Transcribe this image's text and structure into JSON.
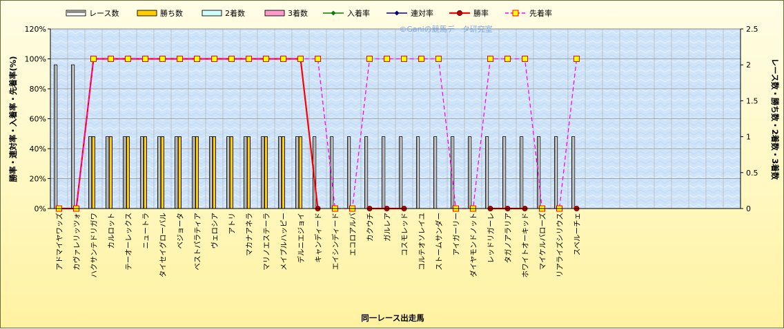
{
  "chart_data": {
    "type": "bar+line",
    "watermark": "©Ganiの競馬データ研究室",
    "xlabel": "同一レース出走馬",
    "ylabel_left": "勝率・連対率・入着率・先着率(%)",
    "ylabel_right": "レース数・勝ち数・2着数・3着数",
    "ylim_left": [
      0,
      120
    ],
    "ylim_right": [
      0,
      2.5
    ],
    "yticks_left": [
      "0%",
      "20%",
      "40%",
      "60%",
      "80%",
      "100%",
      "120%"
    ],
    "yticks_right": [
      "0",
      "0.5",
      "1",
      "1.5",
      "2",
      "2.5"
    ],
    "grid": true,
    "legend_position": "top",
    "total_slots": 40,
    "categories": [
      "アドマイヤワッズ",
      "カヴァレリッツォ",
      "ハクサンテドリガワ",
      "カルロット",
      "テーオーレックス",
      "ニュートラ",
      "タイセイグローバル",
      "ベジョータ",
      "ベストパラティア",
      "ヴェロシア",
      "アトリ",
      "マカナアネラ",
      "マリノエステーラ",
      "メイプルハッピー",
      "デルニエジョイ",
      "キャンディード",
      "エイシンディード",
      "エコロアルバ",
      "カクウチ",
      "ガルレア",
      "コスモレッド",
      "コルテオソレイユ",
      "ストームサンダー",
      "アイガーリー",
      "ダイヤモンドノット",
      "レッドリガーレ",
      "タガノアラリア",
      "ホワイトオーキッド",
      "マイケルバローズ",
      "リアライズシリウス",
      "スペルーチェ"
    ],
    "series": [
      {
        "name": "レース数",
        "kind": "bar",
        "axis": "right",
        "color": "#ffffff",
        "values": [
          2,
          2,
          1,
          1,
          1,
          1,
          1,
          1,
          1,
          1,
          1,
          1,
          1,
          1,
          1,
          1,
          1,
          1,
          1,
          1,
          1,
          1,
          1,
          1,
          1,
          1,
          1,
          1,
          1,
          1,
          1
        ]
      },
      {
        "name": "勝ち数",
        "kind": "bar",
        "axis": "right",
        "color": "#ffcc00",
        "values": [
          0,
          0,
          1,
          1,
          1,
          1,
          1,
          1,
          1,
          1,
          1,
          1,
          1,
          1,
          1,
          0,
          0,
          0,
          0,
          0,
          0,
          0,
          0,
          0,
          0,
          0,
          0,
          0,
          0,
          0,
          0
        ]
      },
      {
        "name": "2着数",
        "kind": "bar",
        "axis": "right",
        "color": "#ccffff",
        "values": [
          0,
          0,
          0,
          0,
          0,
          0,
          0,
          0,
          0,
          0,
          0,
          0,
          0,
          0,
          0,
          0,
          0,
          0,
          0,
          0,
          0,
          0,
          0,
          0,
          0,
          0,
          0,
          0,
          0,
          0,
          0
        ]
      },
      {
        "name": "3着数",
        "kind": "bar",
        "axis": "right",
        "color": "#ff99cc",
        "values": [
          0,
          0,
          0,
          0,
          0,
          0,
          0,
          0,
          0,
          0,
          0,
          0,
          0,
          0,
          0,
          0,
          0,
          0,
          0,
          0,
          0,
          0,
          0,
          0,
          0,
          0,
          0,
          0,
          0,
          0,
          0
        ]
      },
      {
        "name": "入着率",
        "kind": "line",
        "axis": "left",
        "color": "#008000",
        "marker": "diamond",
        "values": [
          0,
          0,
          100,
          100,
          100,
          100,
          100,
          100,
          100,
          100,
          100,
          100,
          100,
          100,
          100,
          0,
          null,
          null,
          0,
          0,
          0,
          null,
          null,
          null,
          null,
          0,
          0,
          0,
          null,
          null,
          0
        ]
      },
      {
        "name": "連対率",
        "kind": "line",
        "axis": "left",
        "color": "#000080",
        "marker": "diamond",
        "values": [
          0,
          0,
          100,
          100,
          100,
          100,
          100,
          100,
          100,
          100,
          100,
          100,
          100,
          100,
          100,
          0,
          null,
          null,
          0,
          0,
          0,
          null,
          null,
          null,
          null,
          0,
          0,
          0,
          null,
          null,
          0
        ]
      },
      {
        "name": "勝率",
        "kind": "line",
        "axis": "left",
        "color": "#ff0000",
        "marker": "circle",
        "values": [
          0,
          0,
          100,
          100,
          100,
          100,
          100,
          100,
          100,
          100,
          100,
          100,
          100,
          100,
          100,
          0,
          null,
          null,
          0,
          0,
          0,
          null,
          null,
          null,
          null,
          0,
          0,
          0,
          null,
          null,
          0
        ]
      },
      {
        "name": "先着率",
        "kind": "line",
        "axis": "left",
        "color": "#ff00ff",
        "marker": "square",
        "dashed": true,
        "values": [
          0,
          0,
          100,
          100,
          100,
          100,
          100,
          100,
          100,
          100,
          100,
          100,
          100,
          100,
          100,
          100,
          0,
          0,
          100,
          100,
          100,
          100,
          100,
          0,
          0,
          100,
          100,
          100,
          0,
          0,
          100
        ]
      }
    ]
  }
}
